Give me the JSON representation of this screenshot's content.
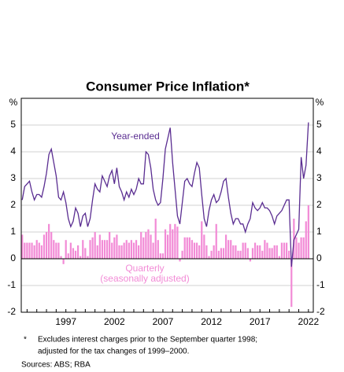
{
  "chart_data": {
    "type": "bar-line",
    "title": "Consumer Price Inflation*",
    "y_unit": "%",
    "annotations": {
      "line": "Year-ended",
      "bars": "Quarterly",
      "bars_note": "(seasonally adjusted)"
    },
    "footnote_marker": "*",
    "footnote": [
      "Excludes interest charges prior to the September quarter 1998;",
      "adjusted for the tax changes of 1999–2000."
    ],
    "source": "Sources: ABS; RBA",
    "x": [
      1992.5,
      1992.75,
      1993,
      1993.25,
      1993.5,
      1993.75,
      1994,
      1994.25,
      1994.5,
      1994.75,
      1995,
      1995.25,
      1995.5,
      1995.75,
      1996,
      1996.25,
      1996.5,
      1996.75,
      1997,
      1997.25,
      1997.5,
      1997.75,
      1998,
      1998.25,
      1998.5,
      1998.75,
      1999,
      1999.25,
      1999.5,
      1999.75,
      2000,
      2000.25,
      2000.5,
      2000.75,
      2001,
      2001.25,
      2001.5,
      2001.75,
      2002,
      2002.25,
      2002.5,
      2002.75,
      2003,
      2003.25,
      2003.5,
      2003.75,
      2004,
      2004.25,
      2004.5,
      2004.75,
      2005,
      2005.25,
      2005.5,
      2005.75,
      2006,
      2006.25,
      2006.5,
      2006.75,
      2007,
      2007.25,
      2007.5,
      2007.75,
      2008,
      2008.25,
      2008.5,
      2008.75,
      2009,
      2009.25,
      2009.5,
      2009.75,
      2010,
      2010.25,
      2010.5,
      2010.75,
      2011,
      2011.25,
      2011.5,
      2011.75,
      2012,
      2012.25,
      2012.5,
      2012.75,
      2013,
      2013.25,
      2013.5,
      2013.75,
      2014,
      2014.25,
      2014.5,
      2014.75,
      2015,
      2015.25,
      2015.5,
      2015.75,
      2016,
      2016.25,
      2016.5,
      2016.75,
      2017,
      2017.25,
      2017.5,
      2017.75,
      2018,
      2018.25,
      2018.5,
      2018.75,
      2019,
      2019.25,
      2019.5,
      2019.75,
      2020,
      2020.25,
      2020.5,
      2020.75,
      2021,
      2021.25,
      2021.5,
      2021.75,
      2022
    ],
    "series": [
      {
        "name": "Quarterly",
        "kind": "bar",
        "color": "#f28bd6",
        "values": [
          0.9,
          0.6,
          0.6,
          0.6,
          0.6,
          0.5,
          0.7,
          0.6,
          0.5,
          0.9,
          1.0,
          1.3,
          1.0,
          0.7,
          0.6,
          0.6,
          0.1,
          -0.2,
          0.7,
          0.2,
          0.6,
          0.4,
          0.3,
          0.5,
          0.1,
          0.7,
          0.4,
          0.1,
          0.7,
          0.8,
          1.0,
          0.5,
          0.9,
          0.7,
          0.7,
          0.7,
          1.0,
          0.6,
          0.8,
          0.9,
          0.5,
          0.5,
          0.6,
          0.7,
          0.6,
          0.7,
          0.6,
          0.7,
          0.5,
          1.0,
          0.8,
          1.0,
          1.1,
          0.9,
          0.6,
          1.5,
          0.7,
          0.2,
          0.2,
          1.1,
          0.9,
          1.3,
          1.1,
          1.3,
          1.2,
          -0.1,
          0.3,
          0.8,
          0.8,
          0.8,
          0.7,
          0.6,
          0.6,
          0.5,
          1.4,
          0.9,
          0.5,
          0.1,
          0.3,
          0.5,
          1.3,
          0.3,
          0.4,
          0.4,
          0.9,
          0.7,
          0.7,
          0.5,
          0.5,
          0.3,
          0.3,
          0.6,
          0.6,
          0.4,
          -0.1,
          0.4,
          0.6,
          0.5,
          0.5,
          0.3,
          0.7,
          0.6,
          0.4,
          0.4,
          0.5,
          0.5,
          0.1,
          0.6,
          0.6,
          0.6,
          0.3,
          -1.8,
          1.5,
          0.8,
          0.6,
          0.8,
          0.8,
          1.4,
          2.0
        ]
      },
      {
        "name": "Year-ended",
        "kind": "line",
        "color": "#5a2d91",
        "values": [
          2.2,
          2.7,
          2.8,
          2.9,
          2.5,
          2.2,
          2.4,
          2.4,
          2.3,
          2.7,
          3.2,
          3.9,
          4.1,
          3.6,
          3.1,
          2.3,
          2.2,
          2.5,
          2.1,
          1.5,
          1.2,
          1.4,
          1.9,
          1.7,
          1.2,
          1.6,
          1.7,
          1.2,
          1.5,
          2.2,
          2.8,
          2.6,
          2.5,
          3.1,
          2.9,
          2.7,
          3.1,
          3.3,
          2.8,
          3.4,
          2.7,
          2.5,
          2.2,
          2.5,
          2.3,
          2.6,
          2.4,
          2.6,
          3.0,
          2.8,
          2.8,
          4.0,
          3.9,
          3.4,
          2.6,
          2.2,
          2.0,
          2.1,
          3.0,
          4.1,
          4.5,
          4.9,
          3.6,
          2.6,
          1.6,
          1.3,
          2.1,
          2.9,
          3.0,
          2.8,
          2.7,
          3.2,
          3.6,
          3.4,
          2.4,
          1.5,
          1.2,
          1.8,
          2.2,
          2.4,
          2.1,
          2.2,
          2.5,
          2.9,
          3.0,
          2.3,
          1.7,
          1.3,
          1.5,
          1.5,
          1.3,
          1.3,
          1.0,
          1.3,
          1.5,
          2.1,
          1.9,
          1.8,
          1.9,
          2.1,
          1.9,
          1.9,
          1.8,
          1.6,
          1.3,
          1.6,
          1.7,
          1.8,
          2.0,
          2.2,
          2.2,
          -0.3,
          0.7,
          0.9,
          1.1,
          3.8,
          3.0,
          3.5,
          5.1
        ]
      }
    ],
    "xlim": [
      1992.4,
      2022.5
    ],
    "xticks": [
      1997,
      2002,
      2007,
      2012,
      2017,
      2022
    ],
    "ylim": [
      -2,
      6
    ],
    "yticks": [
      -2,
      -1,
      0,
      1,
      2,
      3,
      4,
      5
    ],
    "grid": true
  }
}
